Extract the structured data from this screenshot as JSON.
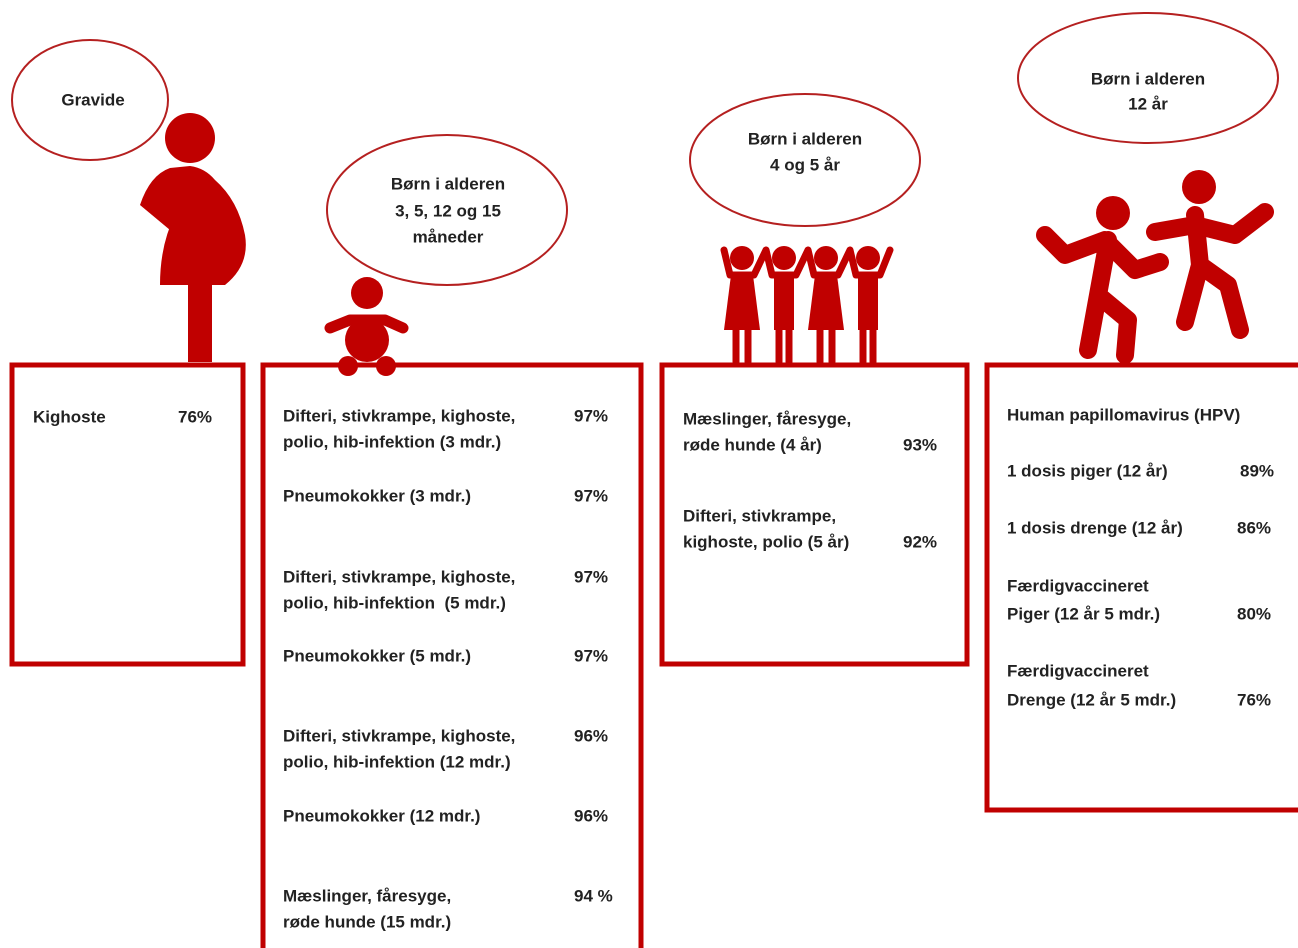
{
  "groups": [
    {
      "bubble": [
        "Gravide"
      ],
      "items": [
        {
          "lines": [
            "Kighoste"
          ],
          "percent": "76%"
        }
      ]
    },
    {
      "bubble": [
        "Børn i alderen",
        "3, 5, 12 og 15",
        "måneder"
      ],
      "items": [
        {
          "lines": [
            "Difteri, stivkrampe, kighoste,",
            "polio, hib-infektion (3 mdr.)"
          ],
          "percent": "97%"
        },
        {
          "lines": [
            "Pneumokokker (3 mdr.)"
          ],
          "percent": "97%"
        },
        {
          "lines": [
            "Difteri, stivkrampe, kighoste,",
            "polio, hib-infektion  (5 mdr.)"
          ],
          "percent": "97%"
        },
        {
          "lines": [
            "Pneumokokker (5 mdr.)"
          ],
          "percent": "97%"
        },
        {
          "lines": [
            "Difteri, stivkrampe, kighoste,",
            "polio, hib-infektion (12 mdr.)"
          ],
          "percent": "96%"
        },
        {
          "lines": [
            "Pneumokokker (12 mdr.)"
          ],
          "percent": "96%"
        },
        {
          "lines": [
            "Mæslinger, fåresyge,",
            "røde hunde (15 mdr.)"
          ],
          "percent": "94 %"
        }
      ]
    },
    {
      "bubble": [
        "Børn i alderen",
        "4 og 5 år"
      ],
      "items": [
        {
          "lines": [
            "Mæslinger, fåresyge,",
            "røde hunde (4 år)"
          ],
          "percent": "93%"
        },
        {
          "lines": [
            "Difteri, stivkrampe,",
            "kighoste, polio (5 år)"
          ],
          "percent": "92%"
        }
      ]
    },
    {
      "bubble": [
        "Børn i alderen",
        "12 år"
      ],
      "items": [
        {
          "lines": [
            "Human papillomavirus (HPV)"
          ]
        },
        {
          "lines": [
            "1 dosis piger (12 år)"
          ],
          "percent": "89%"
        },
        {
          "lines": [
            "1 dosis drenge (12 år)"
          ],
          "percent": "86%"
        },
        {
          "lines": [
            "Færdigvaccineret",
            "Piger (12 år 5 mdr.)"
          ],
          "percent": "80%"
        },
        {
          "lines": [
            "Færdigvaccineret",
            "Drenge (12 år 5 mdr.)"
          ],
          "percent": "76%"
        }
      ]
    }
  ]
}
